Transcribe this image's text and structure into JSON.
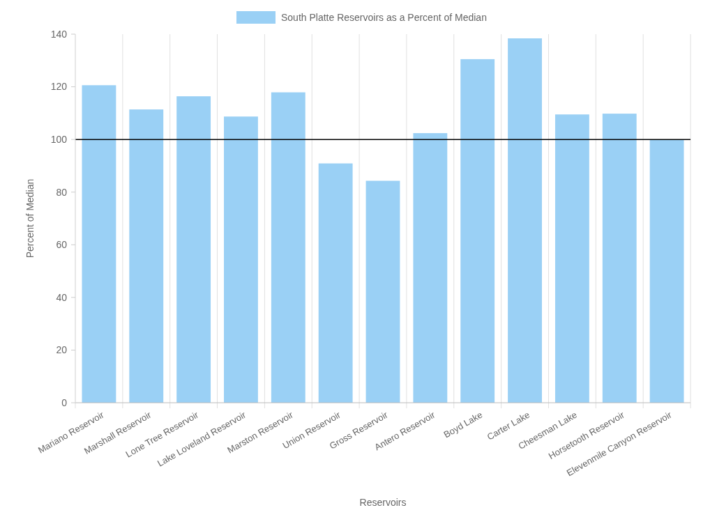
{
  "chart_data": {
    "type": "bar",
    "xlabel": "Reservoirs",
    "ylabel": "Percent of Median",
    "categories": [
      "Mariano Reservoir",
      "Marshall Reservoir",
      "Lone Tree Reservoir",
      "Lake Loveland Reservoir",
      "Marston Reservoir",
      "Union Reservoir",
      "Gross Reservoir",
      "Antero Reservoir",
      "Boyd Lake",
      "Carter Lake",
      "Cheesman Lake",
      "Horsetooth Reservoir",
      "Elevenmile Canyon Reservoir"
    ],
    "series": [
      {
        "name": "South Platte Reservoirs as a Percent of Median",
        "color": "#9ad0f5",
        "values": [
          120.6,
          111.4,
          116.4,
          108.7,
          117.9,
          90.9,
          84.3,
          102.4,
          130.5,
          138.4,
          109.5,
          109.8,
          99.8
        ]
      }
    ],
    "ylim": [
      0,
      140
    ],
    "yticks": [
      0,
      20,
      40,
      60,
      80,
      100,
      120,
      140
    ],
    "grid": "x",
    "legend": "top",
    "ref_lines": [
      {
        "axis": "y",
        "value": 100,
        "label": null,
        "color": "#000000"
      }
    ]
  }
}
